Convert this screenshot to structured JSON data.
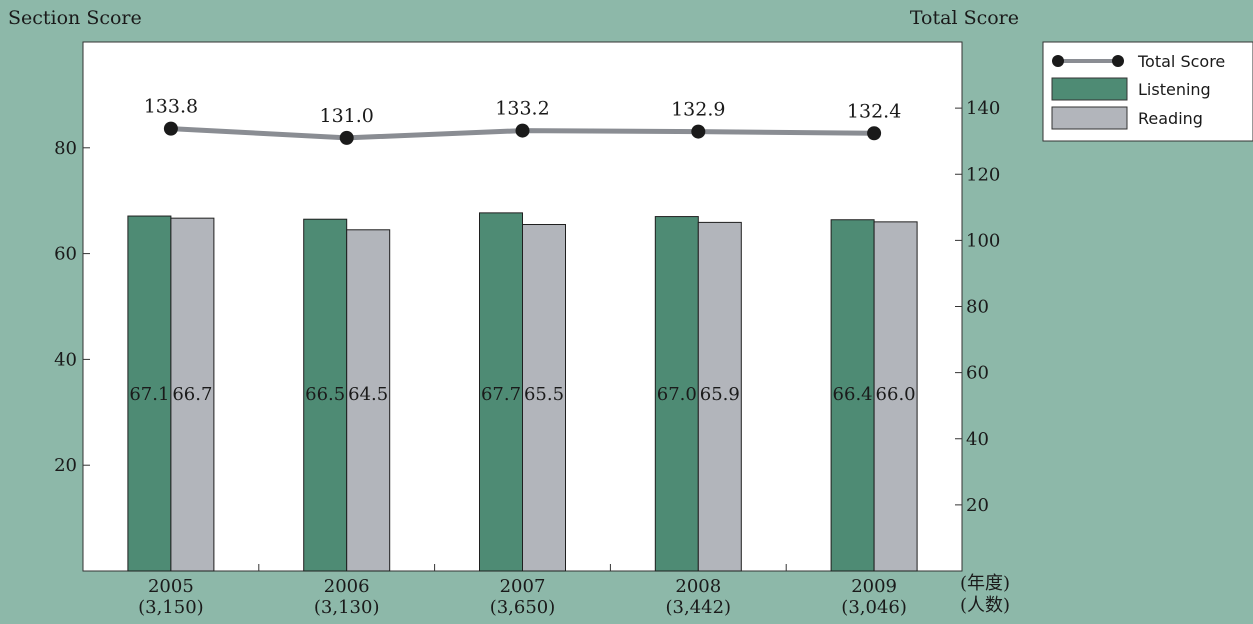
{
  "chart_data": {
    "type": "bar",
    "categories": [
      "2005",
      "2006",
      "2007",
      "2008",
      "2009"
    ],
    "category_counts": [
      "(3,150)",
      "(3,130)",
      "(3,650)",
      "(3,442)",
      "(3,046)"
    ],
    "x_unit_labels": [
      "(年度)",
      "(人数)"
    ],
    "ylabel_left": "Section Score",
    "ylabel_right": "Total Score",
    "ylim_left": [
      0,
      100
    ],
    "ylim_right": [
      0,
      160
    ],
    "yticks_left": [
      20,
      40,
      60,
      80
    ],
    "yticks_right": [
      20,
      40,
      60,
      80,
      100,
      120,
      140
    ],
    "series": [
      {
        "name": "Listening",
        "type": "bar",
        "axis": "left",
        "color": "#4e8b74",
        "values": [
          67.1,
          66.5,
          67.7,
          67.0,
          66.4
        ],
        "labels": [
          "67.1",
          "66.5",
          "67.7",
          "67.0",
          "66.4"
        ]
      },
      {
        "name": "Reading",
        "type": "bar",
        "axis": "left",
        "color": "#b2b5bb",
        "values": [
          66.7,
          64.5,
          65.5,
          65.9,
          66.0
        ],
        "labels": [
          "66.7",
          "64.5",
          "65.5",
          "65.9",
          "66.0"
        ]
      },
      {
        "name": "Total Score",
        "type": "line",
        "axis": "right",
        "color": "#8a8d93",
        "marker_color": "#1a1a1a",
        "values": [
          133.8,
          131.0,
          133.2,
          132.9,
          132.4
        ],
        "labels": [
          "133.8",
          "131.0",
          "133.2",
          "132.9",
          "132.4"
        ]
      }
    ],
    "legend": {
      "position": "top-right",
      "entries": [
        "Total Score",
        "Listening",
        "Reading"
      ]
    },
    "grid": false
  }
}
